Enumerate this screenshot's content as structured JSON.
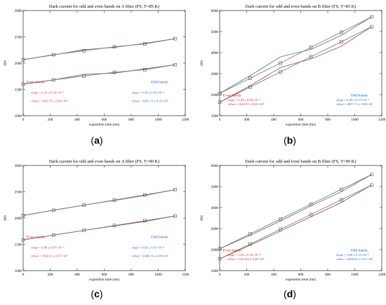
{
  "chart_data": [
    {
      "type": "line",
      "panel_label": "a",
      "title": "Dark current for odd and even bands on A filter (FS, T=85 K)",
      "xlabel": "exposition time (ms)",
      "ylabel": "DN",
      "xlim": [
        0,
        1200
      ],
      "ylim": [
        1000,
        3000
      ],
      "xticks": [
        0,
        200,
        400,
        600,
        800,
        1000,
        1200
      ],
      "yticks": [
        1000,
        1500,
        2000,
        2500,
        3000
      ],
      "x": [
        0,
        225,
        450,
        675,
        900,
        1125
      ],
      "series": [
        {
          "group": "odd",
          "color": "#5a6fa0",
          "values": [
            2065,
            2155,
            2255,
            2300,
            2375,
            2465
          ]
        },
        {
          "group": "odd",
          "color": "#808080",
          "values": [
            2065,
            2160,
            2235,
            2310,
            2365,
            2465
          ]
        },
        {
          "group": "even",
          "color": "#a05560",
          "values": [
            1600,
            1680,
            1785,
            1810,
            1890,
            1970
          ]
        },
        {
          "group": "even",
          "color": "#808080",
          "values": [
            1600,
            1680,
            1755,
            1825,
            1875,
            1970
          ]
        }
      ],
      "annotations": [
        {
          "id": "even_head",
          "text": "Even bands",
          "color": "#d62728"
        },
        {
          "id": "even_slope",
          "text": "slope = 0.33 ± 0.16×10⁻²",
          "color": "#d62728"
        },
        {
          "id": "even_offset",
          "text": "offset = 1601.55 ± 0.69×10¹",
          "color": "#d62728"
        },
        {
          "id": "odd_head",
          "text": "Odd bands",
          "color": "#1f5fd0"
        },
        {
          "id": "odd_slope",
          "text": "slope = 0.36 ± 0.43×10⁻²",
          "color": "#1f5fd0"
        },
        {
          "id": "odd_offset",
          "text": "offset = 2065.13 ± 0.16×10¹",
          "color": "#1f5fd0"
        }
      ]
    },
    {
      "type": "line",
      "panel_label": "b",
      "title": "Dark current for odd and even bands on B filter (FS, T=85 K)",
      "xlabel": "exposition time (ms)",
      "ylabel": "DN",
      "xlim": [
        0,
        1200
      ],
      "ylim": [
        1000,
        6000
      ],
      "xticks": [
        0,
        200,
        400,
        600,
        800,
        1000,
        1200
      ],
      "yticks": [
        1000,
        2000,
        3000,
        4000,
        5000,
        6000
      ],
      "x": [
        0,
        225,
        450,
        675,
        900,
        1125
      ],
      "series": [
        {
          "group": "odd",
          "color": "#5a6fa0",
          "values": [
            2060,
            2900,
            3800,
            4150,
            4820,
            5700
          ]
        },
        {
          "group": "odd",
          "color": "#808080",
          "values": [
            2060,
            2780,
            3500,
            4250,
            4970,
            5700
          ]
        },
        {
          "group": "even",
          "color": "#a05560",
          "values": [
            1640,
            2420,
            3290,
            3700,
            4300,
            5230
          ]
        },
        {
          "group": "even",
          "color": "#808080",
          "values": [
            1640,
            2360,
            3080,
            3800,
            4510,
            5230
          ]
        }
      ],
      "annotations": [
        {
          "id": "even_head",
          "text": "Even bands",
          "color": "#d62728"
        },
        {
          "id": "even_slope",
          "text": "slope = 3.20 ± 0.45×10⁻²",
          "color": "#d62728"
        },
        {
          "id": "even_offset",
          "text": "offset = 1642.85 ± 0.69×10¹",
          "color": "#d62728"
        },
        {
          "id": "odd_head",
          "text": "Odd bands",
          "color": "#1f5fd0"
        },
        {
          "id": "odd_slope",
          "text": "slope = 3.20 ± 0.15×10⁻²",
          "color": "#1f5fd0"
        },
        {
          "id": "odd_offset",
          "text": "offset = 2057.71 ± 0.50×10¹",
          "color": "#1f5fd0"
        }
      ]
    },
    {
      "type": "line",
      "panel_label": "c",
      "title": "Dark current for odd and even bands on A filter (FS, T=90 K)",
      "xlabel": "exposition time (ms)",
      "ylabel": "DN",
      "xlim": [
        0,
        1200
      ],
      "ylim": [
        1000,
        3000
      ],
      "xticks": [
        0,
        200,
        400,
        600,
        800,
        1000,
        1200
      ],
      "yticks": [
        1000,
        1500,
        2000,
        2500,
        3000
      ],
      "x": [
        0,
        225,
        450,
        675,
        900,
        1125
      ],
      "series": [
        {
          "group": "odd",
          "color": "#5a6fa0",
          "values": [
            2050,
            2150,
            2245,
            2335,
            2430,
            2540
          ]
        },
        {
          "group": "odd",
          "color": "#808080",
          "values": [
            2050,
            2148,
            2245,
            2343,
            2440,
            2540
          ]
        },
        {
          "group": "even",
          "color": "#a05560",
          "values": [
            1585,
            1675,
            1765,
            1850,
            1935,
            2040
          ]
        },
        {
          "group": "even",
          "color": "#808080",
          "values": [
            1585,
            1676,
            1767,
            1858,
            1949,
            2040
          ]
        }
      ],
      "annotations": [
        {
          "id": "even_head",
          "text": "Even bands",
          "color": "#d62728"
        },
        {
          "id": "even_slope",
          "text": "slope = 0.40 ± 0.87×10⁻³",
          "color": "#d62728"
        },
        {
          "id": "even_offset",
          "text": "offset = 1582.21 ± 0.57×10¹",
          "color": "#d62728"
        },
        {
          "id": "odd_head",
          "text": "Odd bands",
          "color": "#1f5fd0"
        },
        {
          "id": "odd_slope",
          "text": "slope = 0.43 ± 0.91×10⁻³",
          "color": "#1f5fd0"
        },
        {
          "id": "odd_offset",
          "text": "offset = 2048.19 ± 0.48×10¹",
          "color": "#1f5fd0"
        }
      ]
    },
    {
      "type": "line",
      "panel_label": "d",
      "title": "Dark current for odd and even bands on B filter (FS, T=90 K)",
      "xlabel": "exposition time (ms)",
      "ylabel": "DN",
      "xlim": [
        0,
        1200
      ],
      "ylim": [
        1000,
        6000
      ],
      "xticks": [
        0,
        200,
        400,
        600,
        800,
        1000,
        1200
      ],
      "yticks": [
        1000,
        2000,
        3000,
        4000,
        5000,
        6000
      ],
      "x": [
        0,
        225,
        450,
        675,
        900,
        1125
      ],
      "series": [
        {
          "group": "odd",
          "color": "#5a6fa0",
          "values": [
            2040,
            2680,
            3360,
            4080,
            4750,
            5570
          ]
        },
        {
          "group": "odd",
          "color": "#808080",
          "values": [
            2040,
            2746,
            3452,
            4158,
            4864,
            5570
          ]
        },
        {
          "group": "even",
          "color": "#a05560",
          "values": [
            1560,
            2210,
            2880,
            3560,
            4240,
            5070
          ]
        },
        {
          "group": "even",
          "color": "#808080",
          "values": [
            1560,
            2262,
            2964,
            3666,
            4368,
            5070
          ]
        }
      ],
      "annotations": [
        {
          "id": "even_head",
          "text": "Even bands",
          "color": "#d62728"
        },
        {
          "id": "even_slope",
          "text": "slope = 3.03 ± 0.16×10⁻²",
          "color": "#d62728"
        },
        {
          "id": "even_offset",
          "text": "offset = 1561.82 ± 0.49×10¹",
          "color": "#d62728"
        },
        {
          "id": "odd_head",
          "text": "Odd bands",
          "color": "#1f5fd0"
        },
        {
          "id": "odd_slope",
          "text": "slope = 3.08 ± 0.15×10⁻²",
          "color": "#1f5fd0"
        },
        {
          "id": "odd_offset",
          "text": "offset = 2038.34 ± 0.51×10¹",
          "color": "#1f5fd0"
        }
      ]
    }
  ]
}
